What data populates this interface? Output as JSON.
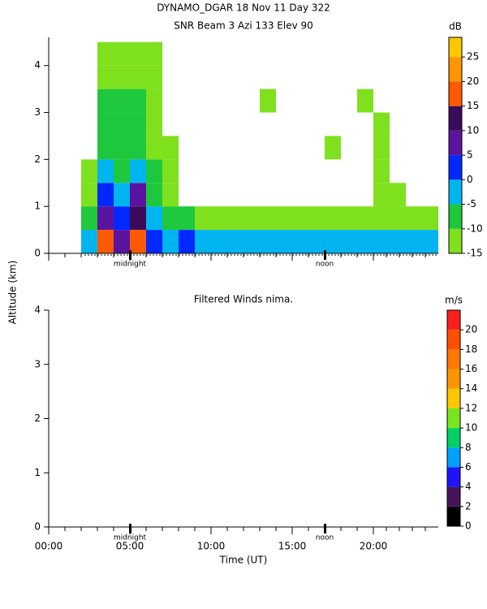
{
  "chart_data": [
    {
      "type": "heatmap",
      "title": "DYNAMO_DGAR  18 Nov 11 Day 322",
      "subtitle": "SNR Beam 3 Azi 133 Elev 90",
      "y_label": "Altitude (km)",
      "xlim": [
        0,
        24
      ],
      "xticks": [
        0,
        5,
        10,
        15,
        20
      ],
      "ylim": [
        0,
        4.6
      ],
      "yticks": [
        0,
        1,
        2,
        3,
        4
      ],
      "annotations": [
        {
          "x": 5,
          "text": "midnight"
        },
        {
          "x": 17,
          "text": "noon"
        }
      ],
      "x_bins": [
        2,
        3,
        4,
        5,
        6,
        7,
        8,
        9,
        10,
        11,
        12,
        13,
        14,
        15,
        16,
        17,
        18,
        19,
        20,
        21,
        22,
        23,
        24
      ],
      "y_bins": [
        0,
        0.5,
        1,
        1.5,
        2,
        2.5,
        3,
        3.5,
        4,
        4.5
      ],
      "values": [
        [
          -5,
          -10,
          -12,
          -13,
          null,
          null,
          null,
          null,
          null
        ],
        [
          18,
          8,
          0,
          -5,
          -8,
          -10,
          -10,
          -12,
          -12
        ],
        [
          5,
          0,
          -5,
          -8,
          -10,
          -10,
          -10,
          -12,
          -12
        ],
        [
          18,
          12,
          5,
          -5,
          -8,
          -10,
          -10,
          -12,
          -12
        ],
        [
          2,
          -5,
          -8,
          -10,
          -12,
          -12,
          -12,
          -12,
          -13
        ],
        [
          -3,
          -8,
          -13,
          -13,
          -14,
          null,
          null,
          null,
          null
        ],
        [
          0,
          -10,
          null,
          null,
          null,
          null,
          null,
          null,
          null
        ],
        [
          -3,
          -12,
          null,
          null,
          null,
          null,
          null,
          null,
          null
        ],
        [
          -5,
          -12,
          null,
          null,
          null,
          null,
          null,
          null,
          null
        ],
        [
          -4,
          -12,
          null,
          null,
          null,
          null,
          null,
          null,
          null
        ],
        [
          -5,
          -13,
          null,
          null,
          null,
          null,
          null,
          null,
          null
        ],
        [
          -3,
          -12,
          null,
          null,
          null,
          null,
          -14,
          null,
          null
        ],
        [
          -5,
          -13,
          null,
          null,
          null,
          null,
          null,
          null,
          null
        ],
        [
          -3,
          -12,
          null,
          null,
          null,
          null,
          null,
          null,
          null
        ],
        [
          -5,
          -13,
          null,
          null,
          null,
          null,
          null,
          null,
          null
        ],
        [
          -2,
          -12,
          null,
          null,
          -13,
          null,
          null,
          null,
          null
        ],
        [
          -4,
          -13,
          null,
          null,
          null,
          null,
          null,
          null,
          null
        ],
        [
          -3,
          -12,
          null,
          null,
          null,
          null,
          -13,
          null,
          null
        ],
        [
          -4,
          -12,
          -13,
          -13,
          -13,
          -14,
          null,
          null,
          null
        ],
        [
          -3,
          -12,
          -13,
          null,
          null,
          null,
          null,
          null,
          null
        ],
        [
          -3,
          -13,
          null,
          null,
          null,
          null,
          null,
          null,
          null
        ],
        [
          -5,
          -13,
          null,
          null,
          null,
          null,
          null,
          null,
          null
        ]
      ],
      "colorbar": {
        "label": "dB",
        "lim": [
          -15,
          29
        ],
        "ticks": [
          -15,
          -10,
          -5,
          0,
          5,
          10,
          15,
          20,
          25
        ],
        "levels": [
          -15,
          -10,
          -5,
          0,
          5,
          10,
          15,
          20,
          25
        ],
        "colors": [
          "#7fe01e",
          "#1ec83c",
          "#00b4f0",
          "#0028ff",
          "#5a14a0",
          "#3c0a5a",
          "#ff5a00",
          "#ff9600",
          "#ffc800"
        ]
      }
    },
    {
      "type": "heatmap",
      "title": "Filtered Winds nima.",
      "x_label": "Time (UT)",
      "xlim": [
        0,
        24
      ],
      "xticks": [
        {
          "value": 0,
          "label": "00:00"
        },
        {
          "value": 5,
          "label": "05:00"
        },
        {
          "value": 10,
          "label": "10:00"
        },
        {
          "value": 15,
          "label": "15:00"
        },
        {
          "value": 20,
          "label": "20:00"
        }
      ],
      "ylim": [
        0,
        4
      ],
      "yticks": [
        0,
        1,
        2,
        3,
        4
      ],
      "annotations": [
        {
          "x": 5,
          "text": "midnight"
        },
        {
          "x": 17,
          "text": "noon"
        }
      ],
      "colorbar": {
        "label": "m/s",
        "lim": [
          0,
          22
        ],
        "ticks": [
          0,
          2,
          4,
          6,
          8,
          10,
          12,
          14,
          16,
          18,
          20
        ],
        "levels": [
          0,
          2,
          4,
          6,
          8,
          10,
          12,
          14,
          16,
          18,
          20
        ],
        "colors": [
          "#000000",
          "#46145a",
          "#1e14ff",
          "#00a0ff",
          "#00d264",
          "#78e61e",
          "#ffc800",
          "#ff9600",
          "#ff7800",
          "#ff5000",
          "#ff1e1e"
        ]
      }
    }
  ]
}
